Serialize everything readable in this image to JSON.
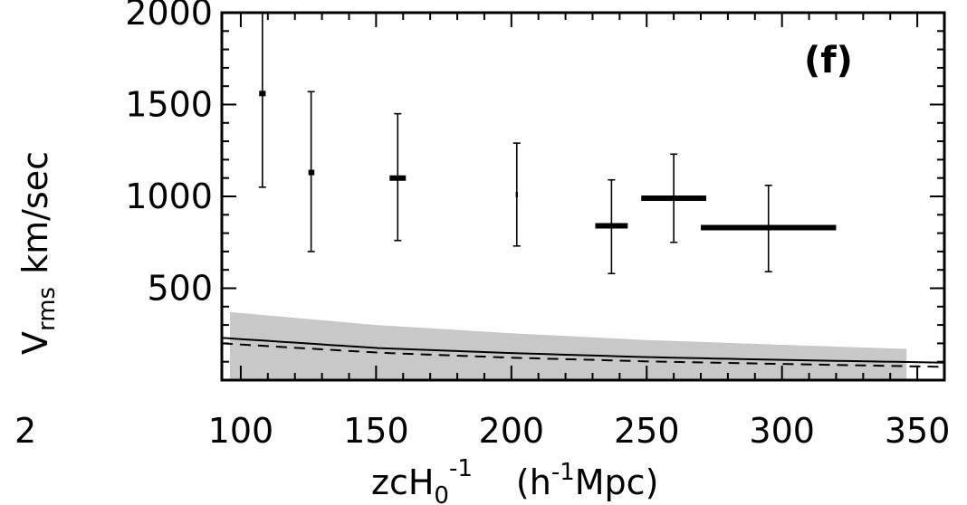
{
  "chart_data": {
    "type": "scatter",
    "panel_label": "(f)",
    "stray_label": "2",
    "xlabel_main": "zcH",
    "xlabel_sub": "0",
    "xlabel_sup": "-1",
    "xlabel_units_open": "(h",
    "xlabel_units_sup": "-1",
    "xlabel_units_close": "Mpc)",
    "ylabel_main": "V",
    "ylabel_sub": "rms",
    "ylabel_units": "km/sec",
    "xlim": [
      93,
      360
    ],
    "ylim": [
      0,
      2000
    ],
    "x_ticks": [
      100,
      150,
      200,
      250,
      300,
      350
    ],
    "x_tick_labels": [
      "100",
      "150",
      "200",
      "250",
      "300",
      "350"
    ],
    "y_ticks": [
      500,
      1000,
      1500,
      2000
    ],
    "y_tick_labels": [
      "500",
      "1000",
      "1500",
      "2000"
    ],
    "points": [
      {
        "x": 108,
        "y": 1560,
        "ylow": 1050,
        "yhigh": 2000,
        "xlow": 106.8,
        "xhigh": 109.2
      },
      {
        "x": 126,
        "y": 1130,
        "ylow": 700,
        "yhigh": 1570,
        "xlow": 125,
        "xhigh": 127.2
      },
      {
        "x": 158,
        "y": 1100,
        "ylow": 760,
        "yhigh": 1450,
        "xlow": 155,
        "xhigh": 161
      },
      {
        "x": 202,
        "y": 1010,
        "ylow": 730,
        "yhigh": 1290,
        "xlow": 201.6,
        "xhigh": 202.4
      },
      {
        "x": 237,
        "y": 840,
        "ylow": 580,
        "yhigh": 1090,
        "xlow": 231,
        "xhigh": 243
      },
      {
        "x": 260,
        "y": 990,
        "ylow": 750,
        "yhigh": 1230,
        "xlow": 248,
        "xhigh": 272
      },
      {
        "x": 295,
        "y": 830,
        "ylow": 590,
        "yhigh": 1060,
        "xlow": 270,
        "xhigh": 320
      }
    ],
    "shaded_band": {
      "x": [
        96,
        150,
        200,
        250,
        300,
        346
      ],
      "upper": [
        370,
        300,
        255,
        218,
        192,
        170
      ],
      "lower": [
        0,
        0,
        0,
        0,
        0,
        0
      ],
      "color": "#c8c8c8"
    },
    "solid_curve": {
      "x": [
        93,
        150,
        200,
        250,
        300,
        360
      ],
      "y": [
        230,
        175,
        147,
        125,
        110,
        95
      ]
    },
    "dashed_curve": {
      "x": [
        93,
        150,
        200,
        250,
        300,
        360
      ],
      "y": [
        200,
        150,
        122,
        102,
        88,
        72
      ]
    }
  }
}
